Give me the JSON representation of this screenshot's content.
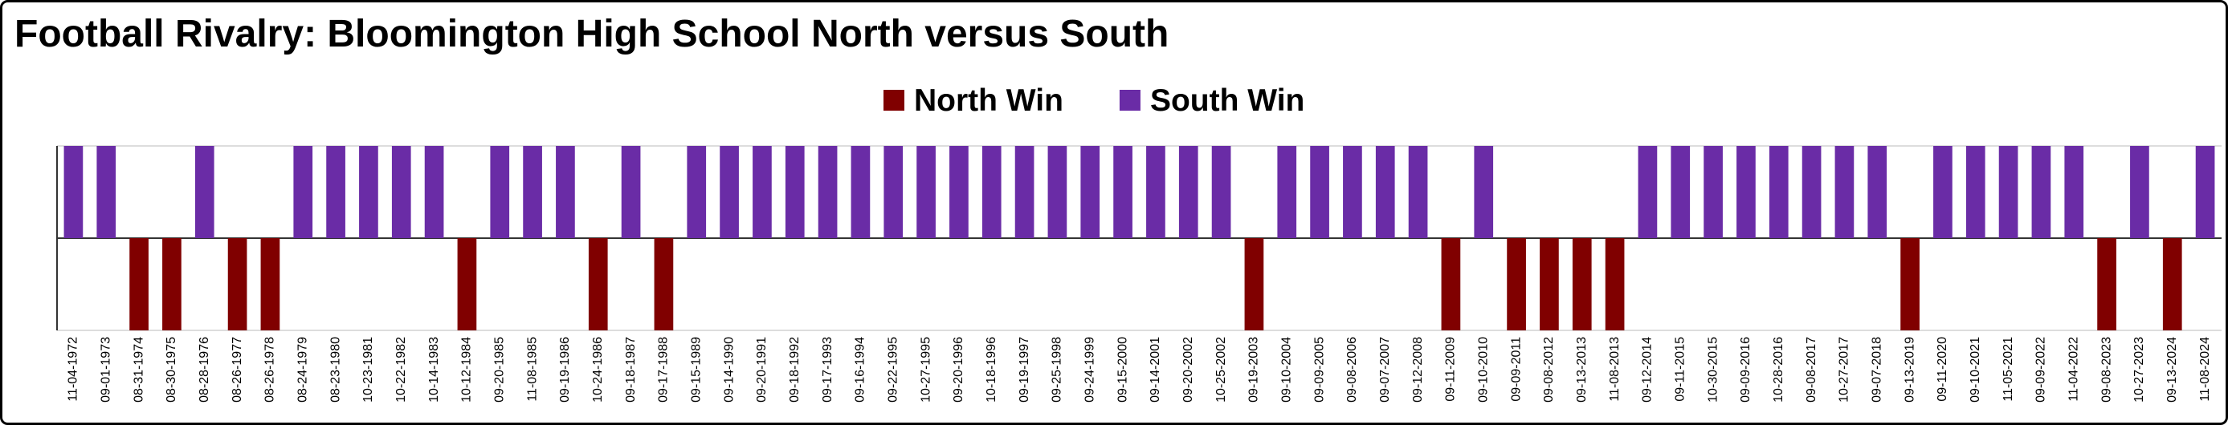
{
  "chart_data": {
    "type": "bar",
    "title": "Football Rivalry: Bloomington High School North versus South",
    "categories": [
      "11-04-1972",
      "09-01-1973",
      "08-31-1974",
      "08-30-1975",
      "08-28-1976",
      "08-26-1977",
      "08-26-1978",
      "08-24-1979",
      "08-23-1980",
      "10-23-1981",
      "10-22-1982",
      "10-14-1983",
      "10-12-1984",
      "09-20-1985",
      "11-08-1985",
      "09-19-1986",
      "10-24-1986",
      "09-18-1987",
      "09-17-1988",
      "09-15-1989",
      "09-14-1990",
      "09-20-1991",
      "09-18-1992",
      "09-17-1993",
      "09-16-1994",
      "09-22-1995",
      "10-27-1995",
      "09-20-1996",
      "10-18-1996",
      "09-19-1997",
      "09-25-1998",
      "09-24-1999",
      "09-15-2000",
      "09-14-2001",
      "09-20-2002",
      "10-25-2002",
      "09-19-2003",
      "09-10-2004",
      "09-09-2005",
      "09-08-2006",
      "09-07-2007",
      "09-12-2008",
      "09-11-2009",
      "09-10-2010",
      "09-09-2011",
      "09-08-2012",
      "09-13-2013",
      "11-08-2013",
      "09-12-2014",
      "09-11-2015",
      "10-30-2015",
      "09-09-2016",
      "10-28-2016",
      "09-08-2017",
      "10-27-2017",
      "09-07-2018",
      "09-13-2019",
      "09-11-2020",
      "09-10-2021",
      "11-05-2021",
      "09-09-2022",
      "11-04-2022",
      "09-08-2023",
      "10-27-2023",
      "09-13-2024",
      "11-08-2024"
    ],
    "series": [
      {
        "name": "North Win",
        "color": "#800000",
        "values": [
          null,
          null,
          -1,
          -1,
          null,
          -1,
          -1,
          null,
          null,
          null,
          null,
          null,
          -1,
          null,
          null,
          null,
          -1,
          null,
          -1,
          null,
          null,
          null,
          null,
          null,
          null,
          null,
          null,
          null,
          null,
          null,
          null,
          null,
          null,
          null,
          null,
          null,
          -1,
          null,
          null,
          null,
          null,
          null,
          -1,
          null,
          -1,
          -1,
          -1,
          -1,
          null,
          null,
          null,
          null,
          null,
          null,
          null,
          null,
          -1,
          null,
          null,
          null,
          null,
          null,
          -1,
          null,
          -1,
          null
        ]
      },
      {
        "name": "South Win",
        "color": "#6a2ca6",
        "values": [
          1,
          1,
          null,
          null,
          1,
          null,
          null,
          1,
          1,
          1,
          1,
          1,
          null,
          1,
          1,
          1,
          null,
          1,
          null,
          1,
          1,
          1,
          1,
          1,
          1,
          1,
          1,
          1,
          1,
          1,
          1,
          1,
          1,
          1,
          1,
          1,
          null,
          1,
          1,
          1,
          1,
          1,
          null,
          1,
          null,
          null,
          null,
          null,
          1,
          1,
          1,
          1,
          1,
          1,
          1,
          1,
          null,
          1,
          1,
          1,
          1,
          1,
          null,
          1,
          null,
          1
        ]
      }
    ],
    "ylim": [
      -1,
      1
    ]
  }
}
